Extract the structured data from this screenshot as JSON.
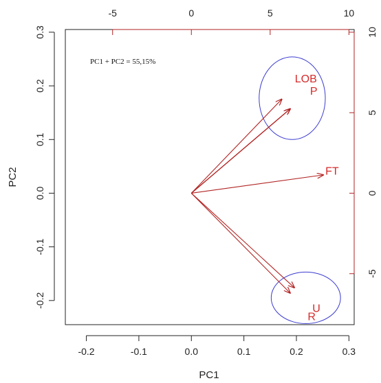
{
  "chart_data": {
    "type": "scatter",
    "subtype": "pca-biplot",
    "xlabel": "PC1",
    "ylabel": "PC2",
    "xlim": [
      -0.24,
      0.31
    ],
    "ylim": [
      -0.245,
      0.305
    ],
    "x_ticks": [
      -0.2,
      -0.1,
      0.0,
      0.1,
      0.2,
      0.3
    ],
    "x_tick_labels": [
      "-0.2",
      "-0.1",
      "0.0",
      "0.1",
      "0.2",
      "0.3"
    ],
    "y_ticks": [
      -0.2,
      -0.1,
      0.0,
      0.1,
      0.2,
      0.3
    ],
    "y_tick_labels": [
      "-0.2",
      "-0.1",
      "0.0",
      "0.1",
      "0.2",
      "0.3"
    ],
    "top_ticks": [
      -5,
      0,
      5,
      10
    ],
    "top_tick_labels": [
      "-5",
      "0",
      "5",
      "10"
    ],
    "right_ticks": [
      -5,
      0,
      5,
      10
    ],
    "right_tick_labels": [
      "-5",
      "0",
      "5",
      "10"
    ],
    "secondary_scale": 0.03,
    "annotation": "PC1 + PC2 = 55,15%",
    "grid": false,
    "legend": "none",
    "vectors": [
      {
        "label": "L",
        "x": 0.172,
        "y": 0.175
      },
      {
        "label": "O",
        "x": 0.188,
        "y": 0.157
      },
      {
        "label": "B",
        "x": 0.188,
        "y": 0.157
      },
      {
        "label": "P",
        "x": 0.188,
        "y": 0.157
      },
      {
        "label": "FT",
        "x": 0.251,
        "y": 0.034
      },
      {
        "label": "R",
        "x": 0.188,
        "y": -0.186
      },
      {
        "label": "U",
        "x": 0.196,
        "y": -0.176
      }
    ],
    "labels": [
      {
        "text": "LOB",
        "x": 0.218,
        "y": 0.212
      },
      {
        "text": "P",
        "x": 0.233,
        "y": 0.189
      },
      {
        "text": "FT",
        "x": 0.268,
        "y": 0.04
      },
      {
        "text": "R",
        "x": 0.229,
        "y": -0.231
      },
      {
        "text": "U",
        "x": 0.238,
        "y": -0.216
      }
    ],
    "ellipses": [
      {
        "cx": 0.192,
        "cy": 0.177,
        "rx": 0.063,
        "ry": 0.077
      },
      {
        "cx": 0.218,
        "cy": -0.195,
        "rx": 0.066,
        "ry": 0.048
      }
    ],
    "colors": {
      "vectors": "#b22222",
      "labels": "#d62a2a",
      "ellipses": "#3a3ad0",
      "axes": "#222222",
      "top_axis": "#b22222"
    }
  }
}
